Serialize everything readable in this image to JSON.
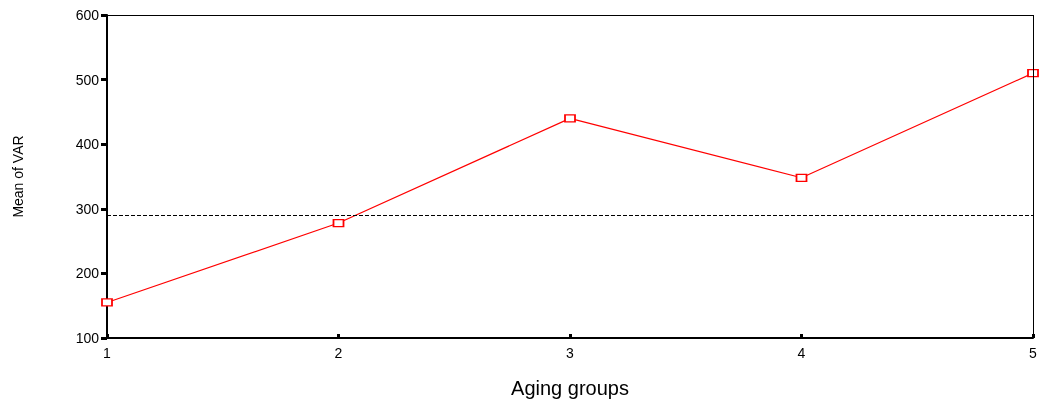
{
  "chart_data": {
    "type": "line",
    "xlabel": "Aging groups",
    "ylabel": "Mean of VAR",
    "x": [
      1,
      2,
      3,
      4,
      5
    ],
    "series": [
      {
        "color": "#ff0000",
        "values": [
          155,
          278,
          440,
          348,
          510
        ]
      }
    ],
    "xlim": [
      1,
      5
    ],
    "xticks": [
      1,
      2,
      3,
      4,
      5
    ],
    "ylim": [
      100,
      600
    ],
    "yticks": [
      100,
      200,
      300,
      400,
      500,
      600
    ],
    "ref_lines": [
      {
        "axis": "y",
        "value": 290,
        "color": "#000000",
        "line_style": "dashed"
      }
    ],
    "marker": "square",
    "line_style": "solid",
    "grid": false
  }
}
